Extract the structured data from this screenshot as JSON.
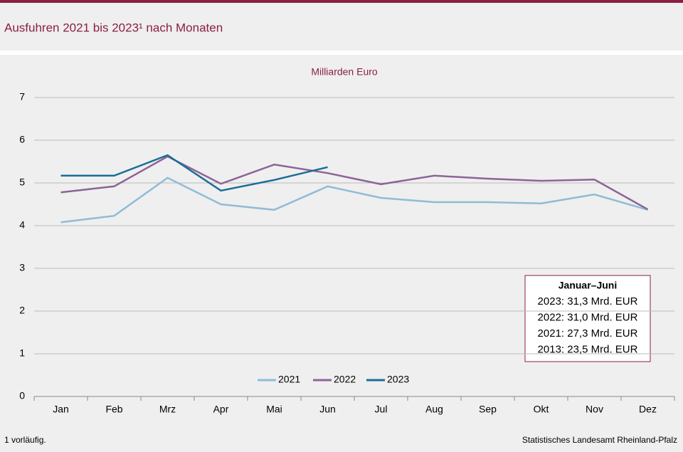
{
  "chart_data": {
    "type": "line",
    "title": "Ausfuhren 2021 bis 2023¹ nach Monaten",
    "subtitle": "Milliarden Euro",
    "categories": [
      "Jan",
      "Feb",
      "Mrz",
      "Apr",
      "Mai",
      "Jun",
      "Jul",
      "Aug",
      "Sep",
      "Okt",
      "Nov",
      "Dez"
    ],
    "series": [
      {
        "name": "2021",
        "color": "#8fbcd6",
        "values": [
          4.08,
          4.23,
          5.12,
          4.5,
          4.37,
          4.92,
          4.65,
          4.55,
          4.55,
          4.52,
          4.73,
          4.37
        ]
      },
      {
        "name": "2022",
        "color": "#8c6496",
        "values": [
          4.78,
          4.92,
          5.62,
          4.98,
          5.43,
          5.23,
          4.97,
          5.17,
          5.1,
          5.05,
          5.08,
          4.38
        ]
      },
      {
        "name": "2023",
        "color": "#1a6e96",
        "values": [
          5.17,
          5.17,
          5.65,
          4.82,
          5.07,
          5.37,
          null,
          null,
          null,
          null,
          null,
          null
        ]
      }
    ],
    "ylim": [
      0,
      7
    ],
    "yticks": [
      0,
      1,
      2,
      3,
      4,
      5,
      6,
      7
    ],
    "grid": true,
    "legend": "bottom",
    "annotation": {
      "title": "Januar–Juni",
      "lines": [
        "2023: 31,3 Mrd. EUR",
        "2022: 31,0 Mrd. EUR",
        "2021: 27,3 Mrd. EUR",
        "2013: 23,5 Mrd. EUR"
      ]
    },
    "footnote": "1 vorläufig.",
    "source": "Statistisches Landesamt Rheinland-Pfalz"
  }
}
